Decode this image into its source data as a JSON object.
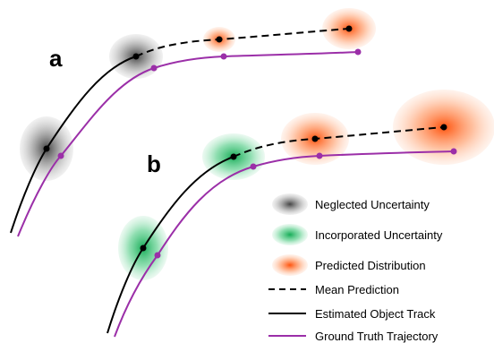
{
  "panels": [
    {
      "label": "a",
      "uncertainty": "neglected"
    },
    {
      "label": "b",
      "uncertainty": "incorporated"
    }
  ],
  "legend": {
    "items": [
      {
        "key": "neglected",
        "label": "Neglected Uncertainty",
        "swatch": "gray-ellipse"
      },
      {
        "key": "incorporated",
        "label": "Incorporated Uncertainty",
        "swatch": "green-ellipse"
      },
      {
        "key": "predicted",
        "label": "Predicted Distribution",
        "swatch": "orange-ellipse"
      },
      {
        "key": "mean",
        "label": "Mean Prediction",
        "swatch": "dashed-black-line"
      },
      {
        "key": "estimated",
        "label": "Estimated Object Track",
        "swatch": "solid-black-line"
      },
      {
        "key": "ground_truth",
        "label": "Ground Truth Trajectory",
        "swatch": "solid-purple-line"
      }
    ]
  },
  "colors": {
    "neglected": "#7a7a7a",
    "incorporated": "#1fbf6a",
    "predicted": "#ff6a1a",
    "track": "#000000",
    "ground_truth": "#9b2fa8"
  }
}
